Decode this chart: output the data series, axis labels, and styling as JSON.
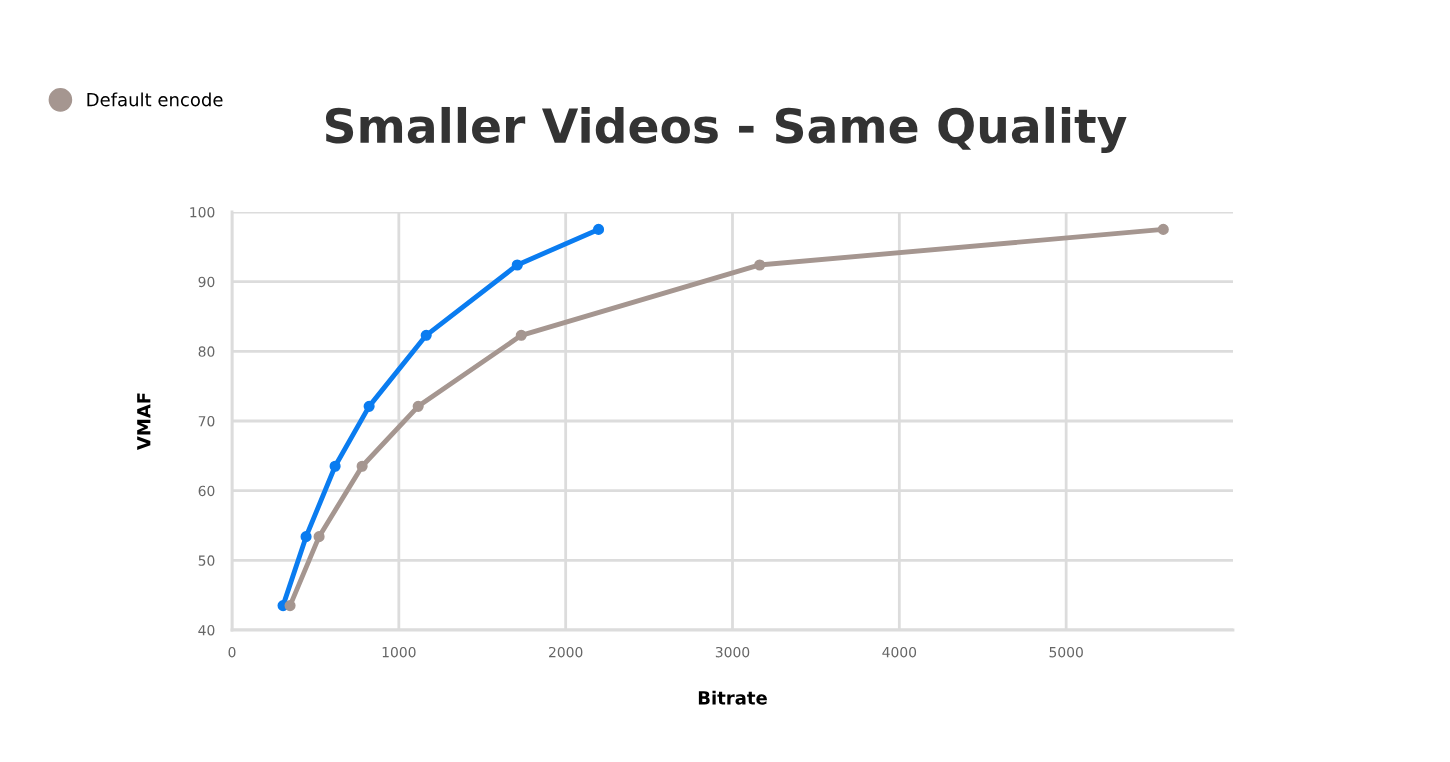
{
  "chart_data": {
    "type": "line",
    "title": "Smaller Videos - Same Quality",
    "xlabel": "Bitrate",
    "ylabel": "VMAF",
    "xlim": [
      0,
      6000
    ],
    "xticks": [
      0,
      1000,
      2000,
      3000,
      4000,
      5000
    ],
    "ylim": [
      40,
      100
    ],
    "yticks": [
      40,
      50,
      60,
      70,
      80,
      90,
      100
    ],
    "grid": true,
    "legend": "top left",
    "marker": "circle",
    "line_style": "solid",
    "series": [
      {
        "color": "#0a7cf0",
        "x": [
          306,
          444,
          618,
          822,
          1164,
          1710,
          2197
        ],
        "values": [
          43.5,
          53.4,
          63.5,
          72.1,
          82.3,
          92.4,
          97.5
        ]
      },
      {
        "name": "Default encode",
        "color": "#a59690",
        "x": [
          348,
          522,
          780,
          1116,
          1734,
          3163,
          5582
        ],
        "values": [
          43.5,
          53.4,
          63.5,
          72.1,
          82.3,
          92.4,
          97.5
        ]
      }
    ]
  }
}
